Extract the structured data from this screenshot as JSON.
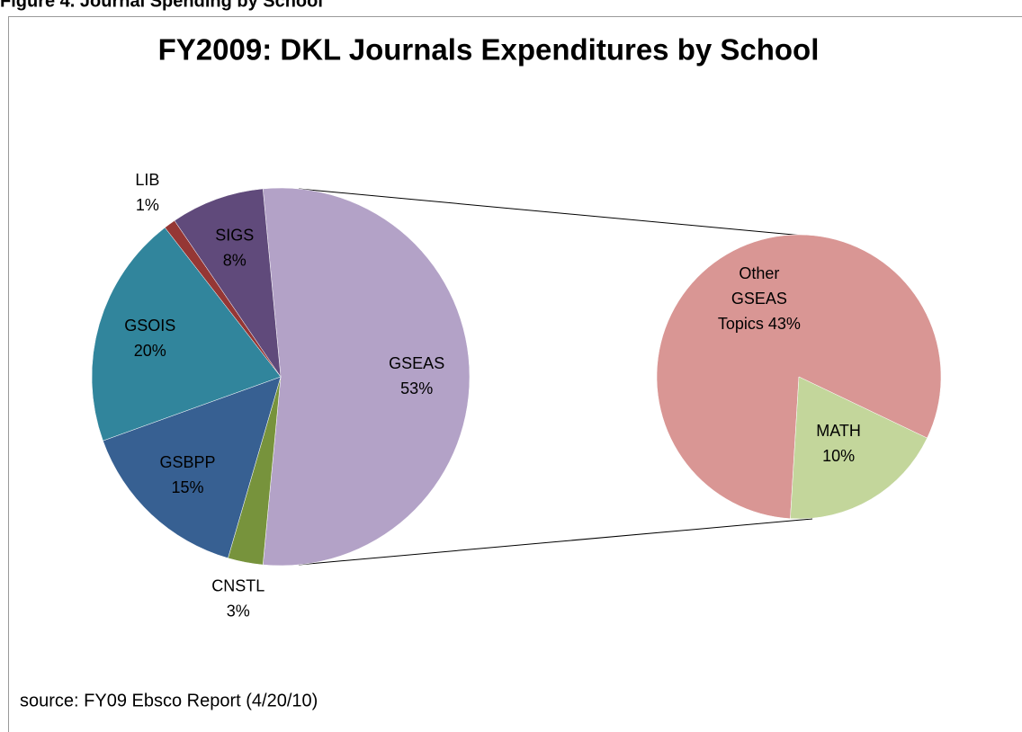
{
  "figure_caption": "Figure 4. Journal Spending by School",
  "chart_data": {
    "type": "pie",
    "title": "FY2009: DKL Journals Expenditures by School",
    "categories": [
      "GSEAS",
      "CNSTL",
      "GSBPP",
      "GSOIS",
      "LIB",
      "SIGS"
    ],
    "values": [
      53,
      3,
      15,
      20,
      1,
      8
    ],
    "value_labels": [
      "53%",
      "3%",
      "15%",
      "20%",
      "1%",
      "8%"
    ],
    "colors": [
      "#b3a2c7",
      "#77933c",
      "#376092",
      "#31859c",
      "#953735",
      "#604a7b"
    ],
    "secondary": {
      "categories": [
        "Other GSEAS Topics",
        "MATH"
      ],
      "values": [
        43,
        10
      ],
      "value_labels": [
        "43%",
        "10%"
      ],
      "colors": [
        "#d99694",
        "#c3d69b"
      ]
    },
    "note": "source: FY09 Ebsco Report  (4/20/10)"
  }
}
